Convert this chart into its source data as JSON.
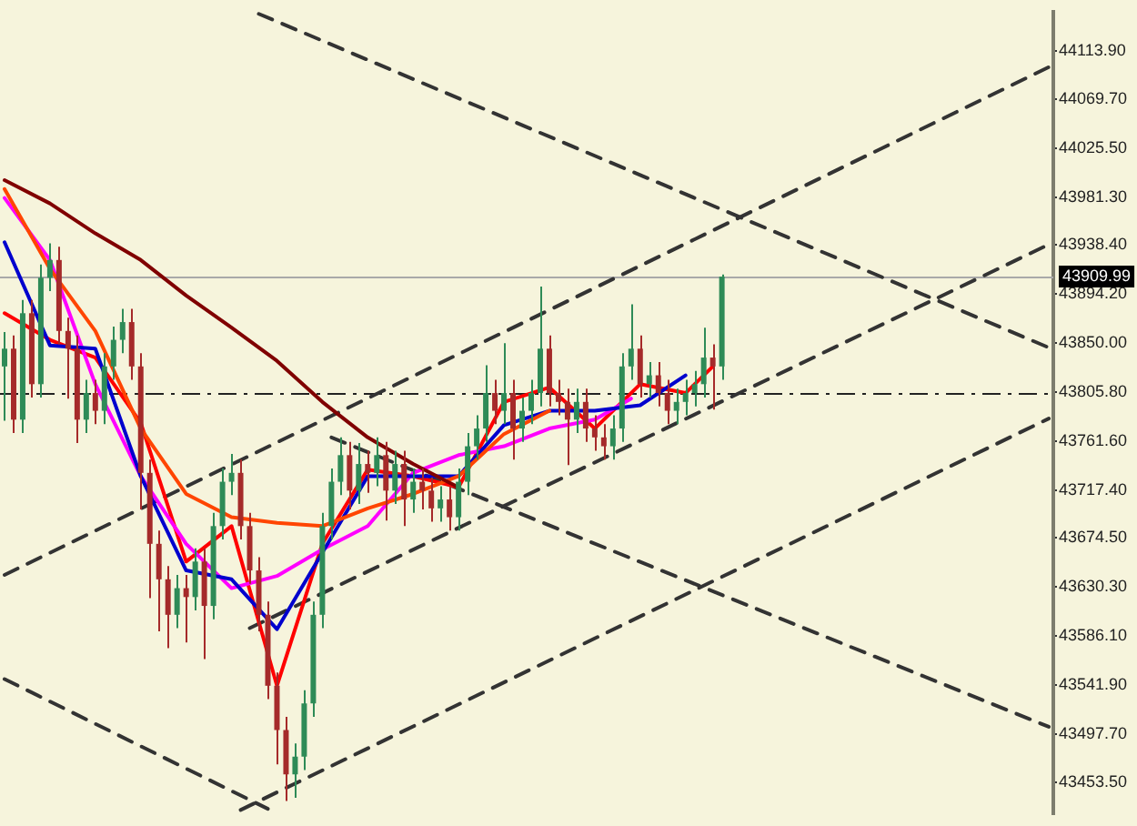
{
  "chart_data": {
    "type": "candlestick",
    "marker": "none",
    "grid": false,
    "legend": false,
    "tick_labels": "y",
    "categories": [
      null,
      null,
      null,
      null,
      null,
      null,
      null,
      null,
      null,
      null,
      null,
      null,
      null,
      null,
      null,
      null,
      null,
      null,
      null,
      null,
      null,
      null,
      null,
      null,
      null,
      null,
      null,
      null,
      null,
      null,
      null,
      null,
      null,
      null,
      null,
      null,
      null,
      null,
      null,
      null,
      null,
      null,
      null,
      null,
      null,
      null,
      null,
      null,
      null,
      null,
      null,
      null,
      null,
      null,
      null,
      null,
      null,
      null,
      null,
      null,
      null,
      null,
      null,
      null,
      null,
      null,
      null,
      null,
      null,
      null,
      null,
      null,
      null,
      null,
      null,
      null,
      null,
      null,
      null,
      null,
      null,
      null,
      null,
      null,
      null,
      null,
      null,
      null,
      null,
      null,
      null,
      null,
      null,
      null,
      null,
      null,
      null,
      null,
      null,
      null,
      null,
      null,
      null,
      null,
      null,
      null,
      null,
      null,
      null,
      null,
      null,
      null,
      null,
      null,
      null,
      null
    ],
    "ylim": [
      43425,
      44149
    ],
    "yticks": [
      {
        "value": 43453.5,
        "label": "43453.50"
      },
      {
        "value": 43497.7,
        "label": "43497.70"
      },
      {
        "value": 43541.9,
        "label": "43541.90"
      },
      {
        "value": 43586.1,
        "label": "43586.10"
      },
      {
        "value": 43630.3,
        "label": "43630.30"
      },
      {
        "value": 43674.5,
        "label": "43674.50"
      },
      {
        "value": 43717.4,
        "label": "43717.40"
      },
      {
        "value": 43761.6,
        "label": "43761.60"
      },
      {
        "value": 43805.8,
        "label": "43805.80"
      },
      {
        "value": 43850,
        "label": "43850.00"
      },
      {
        "value": 43894.2,
        "label": "43894.20"
      },
      {
        "value": 43938.4,
        "label": "43938.40"
      },
      {
        "value": 43981.3,
        "label": "43981.30"
      },
      {
        "value": 44025.5,
        "label": "44025.50"
      },
      {
        "value": 44069.7,
        "label": "44069.70"
      },
      {
        "value": 44113.9,
        "label": "44113.90"
      }
    ],
    "ohlc": [
      [
        43829,
        43860,
        43780,
        43845
      ],
      [
        43845,
        43857,
        43769,
        43781
      ],
      [
        43781,
        43889,
        43769,
        43877
      ],
      [
        43877,
        43889,
        43801,
        43813
      ],
      [
        43813,
        43921,
        43801,
        43909
      ],
      [
        43909,
        43940,
        43897,
        43925
      ],
      [
        43925,
        43937,
        43849,
        43861
      ],
      [
        43861,
        43873,
        43800,
        43845
      ],
      [
        43845,
        43857,
        43760,
        43781
      ],
      [
        43781,
        43817,
        43769,
        43805
      ],
      [
        43805,
        43817,
        43777,
        43789
      ],
      [
        43789,
        43841,
        43777,
        43829
      ],
      [
        43829,
        43865,
        43817,
        43853
      ],
      [
        43853,
        43881,
        43841,
        43869
      ],
      [
        43869,
        43881,
        43817,
        43829
      ],
      [
        43829,
        43841,
        43700,
        43733
      ],
      [
        43733,
        43745,
        43620,
        43669
      ],
      [
        43669,
        43681,
        43590,
        43637
      ],
      [
        43637,
        43649,
        43575,
        43605
      ],
      [
        43605,
        43641,
        43593,
        43629
      ],
      [
        43629,
        43641,
        43580,
        43621
      ],
      [
        43621,
        43665,
        43609,
        43653
      ],
      [
        43653,
        43665,
        43565,
        43613
      ],
      [
        43613,
        43697,
        43601,
        43685
      ],
      [
        43685,
        43737,
        43673,
        43725
      ],
      [
        43725,
        43750,
        43713,
        43733
      ],
      [
        43733,
        43745,
        43673,
        43685
      ],
      [
        43685,
        43697,
        43633,
        43645
      ],
      [
        43645,
        43657,
        43590,
        43605
      ],
      [
        43605,
        43617,
        43529,
        43541
      ],
      [
        43541,
        43553,
        43470,
        43501
      ],
      [
        43501,
        43513,
        43437,
        43461
      ],
      [
        43461,
        43489,
        43440,
        43477
      ],
      [
        43477,
        43537,
        43465,
        43525
      ],
      [
        43525,
        43617,
        43513,
        43605
      ],
      [
        43605,
        43697,
        43593,
        43685
      ],
      [
        43685,
        43737,
        43673,
        43725
      ],
      [
        43725,
        43765,
        43713,
        43749
      ],
      [
        43749,
        43761,
        43700,
        43717
      ],
      [
        43717,
        43760,
        43705,
        43741
      ],
      [
        43741,
        43753,
        43715,
        43733
      ],
      [
        43733,
        43765,
        43721,
        43749
      ],
      [
        43749,
        43761,
        43690,
        43717
      ],
      [
        43717,
        43753,
        43705,
        43741
      ],
      [
        43741,
        43753,
        43685,
        43709
      ],
      [
        43709,
        43737,
        43697,
        43725
      ],
      [
        43725,
        43737,
        43700,
        43717
      ],
      [
        43717,
        43729,
        43689,
        43701
      ],
      [
        43701,
        43721,
        43689,
        43709
      ],
      [
        43709,
        43721,
        43681,
        43693
      ],
      [
        43693,
        43737,
        43681,
        43725
      ],
      [
        43725,
        43769,
        43713,
        43757
      ],
      [
        43757,
        43785,
        43745,
        43773
      ],
      [
        43773,
        43830,
        43761,
        43805
      ],
      [
        43805,
        43817,
        43777,
        43789
      ],
      [
        43789,
        43850,
        43777,
        43805
      ],
      [
        43805,
        43817,
        43745,
        43773
      ],
      [
        43773,
        43801,
        43761,
        43789
      ],
      [
        43789,
        43817,
        43777,
        43805
      ],
      [
        43805,
        43901,
        43793,
        43845
      ],
      [
        43845,
        43857,
        43793,
        43805
      ],
      [
        43805,
        43817,
        43785,
        43797
      ],
      [
        43797,
        43809,
        43740,
        43781
      ],
      [
        43781,
        43809,
        43769,
        43797
      ],
      [
        43797,
        43809,
        43761,
        43773
      ],
      [
        43773,
        43785,
        43753,
        43765
      ],
      [
        43765,
        43777,
        43745,
        43757
      ],
      [
        43757,
        43785,
        43745,
        43773
      ],
      [
        43773,
        43841,
        43761,
        43829
      ],
      [
        43829,
        43885,
        43817,
        43845
      ],
      [
        43845,
        43857,
        43801,
        43813
      ],
      [
        43813,
        43833,
        43801,
        43821
      ],
      [
        43821,
        43833,
        43793,
        43805
      ],
      [
        43805,
        43817,
        43777,
        43789
      ],
      [
        43789,
        43809,
        43777,
        43797
      ],
      [
        43797,
        43817,
        43785,
        43805
      ],
      [
        43805,
        43825,
        43793,
        43813
      ],
      [
        43813,
        43864,
        43801,
        43837
      ],
      [
        43837,
        43849,
        43790,
        43829
      ],
      [
        43829,
        43912,
        43817,
        43909.99
      ],
      null,
      null,
      null,
      null,
      null,
      null,
      null,
      null,
      null,
      null,
      null,
      null,
      null,
      null,
      null,
      null,
      null,
      null,
      null,
      null,
      null,
      null,
      null,
      null,
      null,
      null,
      null,
      null,
      null,
      null,
      null,
      null,
      null,
      null,
      null,
      null
    ],
    "colors": [
      "#2e8b57",
      "#a52a2a",
      "#2e8b57",
      "#a52a2a",
      "#2e8b57",
      "#2e8b57",
      "#a52a2a",
      "#a52a2a",
      "#a52a2a",
      "#2e8b57",
      "#a52a2a",
      "#2e8b57",
      "#2e8b57",
      "#2e8b57",
      "#a52a2a",
      "#a52a2a",
      "#a52a2a",
      "#a52a2a",
      "#a52a2a",
      "#2e8b57",
      "#a52a2a",
      "#2e8b57",
      "#a52a2a",
      "#2e8b57",
      "#2e8b57",
      "#2e8b57",
      "#a52a2a",
      "#a52a2a",
      "#a52a2a",
      "#a52a2a",
      "#a52a2a",
      "#a52a2a",
      "#2e8b57",
      "#2e8b57",
      "#2e8b57",
      "#2e8b57",
      "#2e8b57",
      "#2e8b57",
      "#a52a2a",
      "#2e8b57",
      "#a52a2a",
      "#2e8b57",
      "#a52a2a",
      "#2e8b57",
      "#a52a2a",
      "#2e8b57",
      "#a52a2a",
      "#a52a2a",
      "#2e8b57",
      "#a52a2a",
      "#2e8b57",
      "#2e8b57",
      "#2e8b57",
      "#2e8b57",
      "#a52a2a",
      "#2e8b57",
      "#a52a2a",
      "#2e8b57",
      "#2e8b57",
      "#2e8b57",
      "#a52a2a",
      "#a52a2a",
      "#a52a2a",
      "#2e8b57",
      "#a52a2a",
      "#a52a2a",
      "#a52a2a",
      "#2e8b57",
      "#2e8b57",
      "#2e8b57",
      "#a52a2a",
      "#2e8b57",
      "#a52a2a",
      "#a52a2a",
      "#2e8b57",
      "#2e8b57",
      "#2e8b57",
      "#2e8b57",
      "#a52a2a",
      "#2e8b57",
      null,
      null,
      null,
      null,
      null,
      null,
      null,
      null,
      null,
      null,
      null,
      null,
      null,
      null,
      null,
      null,
      null,
      null,
      null,
      null,
      null,
      null,
      null,
      null,
      null,
      null,
      null,
      null,
      null,
      null,
      null,
      null,
      null,
      null,
      null,
      null
    ],
    "series": [
      {
        "type": "line",
        "color": "#800000",
        "values": [
          43997,
          null,
          null,
          null,
          null,
          43976,
          null,
          null,
          null,
          null,
          43949,
          null,
          null,
          null,
          null,
          43925,
          null,
          null,
          null,
          null,
          43893,
          null,
          null,
          null,
          null,
          43864,
          null,
          null,
          null,
          null,
          43834,
          null,
          null,
          null,
          null,
          43797,
          null,
          null,
          null,
          null,
          43765,
          null,
          null,
          null,
          null,
          43741,
          null,
          null,
          null,
          null,
          43720,
          null,
          null,
          null,
          null,
          null,
          null,
          null,
          null,
          null,
          null,
          null,
          null,
          null,
          null,
          null,
          null,
          null,
          null,
          null,
          null,
          null,
          null,
          null,
          null,
          null,
          null,
          null,
          null,
          null,
          null,
          null,
          null,
          null,
          null,
          null,
          null,
          null,
          null,
          null,
          null,
          null,
          null,
          null,
          null,
          null,
          null,
          null,
          null,
          null,
          null,
          null,
          null,
          null,
          null,
          null,
          null,
          null,
          null,
          null,
          null,
          null,
          null,
          null,
          null,
          null
        ]
      },
      {
        "type": "line",
        "color": "#ff4500",
        "values": [
          43989,
          null,
          null,
          null,
          null,
          43917,
          null,
          null,
          null,
          null,
          43861,
          null,
          null,
          null,
          null,
          43773,
          null,
          null,
          null,
          null,
          43714,
          null,
          null,
          null,
          null,
          43693,
          null,
          null,
          null,
          null,
          43688,
          null,
          null,
          null,
          null,
          43685,
          null,
          null,
          null,
          null,
          43701,
          null,
          null,
          null,
          null,
          43714,
          null,
          null,
          null,
          null,
          43730,
          null,
          null,
          null,
          null,
          43768,
          null,
          null,
          null,
          null,
          43789,
          null,
          null,
          null,
          null,
          null,
          null,
          null,
          null,
          null,
          null,
          null,
          null,
          null,
          null,
          null,
          null,
          null,
          null,
          null,
          null,
          null,
          null,
          null,
          null,
          null,
          null,
          null,
          null,
          null,
          null,
          null,
          null,
          null,
          null,
          null,
          null,
          null,
          null,
          null,
          null,
          null,
          null,
          null,
          null,
          null,
          null,
          null,
          null,
          null,
          null,
          null,
          null,
          null,
          null,
          null
        ]
      },
      {
        "type": "line",
        "color": "#0000cd",
        "values": [
          43941,
          null,
          null,
          null,
          null,
          43848,
          null,
          null,
          null,
          null,
          43845,
          null,
          null,
          null,
          null,
          43730,
          null,
          null,
          null,
          null,
          43645,
          null,
          null,
          null,
          null,
          43637,
          null,
          null,
          null,
          null,
          43592,
          null,
          null,
          null,
          null,
          43661,
          null,
          null,
          null,
          null,
          43730,
          null,
          null,
          null,
          null,
          43730,
          null,
          null,
          null,
          null,
          43730,
          null,
          null,
          null,
          null,
          43776,
          null,
          null,
          null,
          null,
          43789,
          null,
          null,
          null,
          null,
          43789,
          null,
          null,
          null,
          null,
          43794,
          null,
          null,
          null,
          null,
          43821,
          null,
          null,
          null,
          null,
          null,
          null,
          null,
          null,
          null,
          null,
          null,
          null,
          null,
          null,
          null,
          null,
          null,
          null,
          null,
          null,
          null,
          null,
          null,
          null,
          null,
          null,
          null,
          null,
          null,
          null,
          null,
          null,
          null,
          null,
          null,
          null,
          null,
          null,
          null,
          null
        ]
      },
      {
        "type": "line",
        "color": "#ff00ff",
        "values": [
          43981,
          null,
          null,
          null,
          null,
          43925,
          null,
          null,
          null,
          null,
          43813,
          null,
          null,
          null,
          null,
          43730,
          null,
          null,
          null,
          null,
          43669,
          null,
          null,
          null,
          null,
          43629,
          null,
          null,
          null,
          null,
          43640,
          null,
          null,
          null,
          null,
          43664,
          null,
          null,
          null,
          null,
          43685,
          null,
          null,
          null,
          null,
          43733,
          null,
          null,
          null,
          null,
          43749,
          null,
          null,
          null,
          null,
          43757,
          null,
          null,
          null,
          null,
          43773,
          null,
          null,
          null,
          null,
          43781,
          null,
          null,
          null,
          43800,
          null,
          null,
          null,
          null,
          null,
          null,
          null,
          null,
          null,
          null,
          null,
          null,
          null,
          null,
          null,
          null,
          null,
          null,
          null,
          null,
          null,
          null,
          null,
          null,
          null,
          null,
          null,
          null,
          null,
          null,
          null,
          null,
          null,
          null,
          null,
          null,
          null,
          null,
          null,
          null,
          null,
          null,
          null,
          null,
          null,
          null
        ]
      },
      {
        "type": "line",
        "color": "#ff0000",
        "values": [
          43877,
          null,
          null,
          null,
          null,
          43853,
          null,
          null,
          null,
          null,
          43837,
          null,
          null,
          null,
          null,
          43778,
          null,
          null,
          null,
          null,
          43653,
          null,
          null,
          null,
          null,
          43685,
          null,
          null,
          null,
          null,
          43541,
          null,
          null,
          null,
          null,
          43669,
          null,
          null,
          null,
          null,
          43736,
          null,
          null,
          null,
          null,
          43730,
          null,
          null,
          null,
          null,
          43720,
          null,
          null,
          null,
          null,
          43797,
          null,
          null,
          null,
          null,
          43810,
          null,
          null,
          null,
          null,
          43773,
          null,
          null,
          null,
          null,
          43813,
          null,
          null,
          null,
          null,
          43805,
          null,
          null,
          43829,
          null,
          null,
          null,
          null,
          null,
          null,
          null,
          null,
          null,
          null,
          null,
          null,
          null,
          null,
          null,
          null,
          null,
          null,
          null,
          null,
          null,
          null,
          null,
          null,
          null,
          null,
          null,
          null,
          null,
          null,
          null,
          null,
          null,
          null,
          null,
          null,
          null
        ]
      },
      {
        "type": "line",
        "color": "#333333",
        "line_style": "dashed",
        "values": [
          null,
          null,
          null,
          null,
          null,
          null,
          null,
          null,
          null,
          null,
          null,
          null,
          null,
          null,
          null,
          null,
          null,
          null,
          null,
          null,
          null,
          null,
          null,
          null,
          null,
          null,
          null,
          null,
          44147,
          null,
          null,
          null,
          null,
          null,
          null,
          null,
          null,
          null,
          null,
          null,
          null,
          null,
          null,
          null,
          null,
          null,
          null,
          null,
          null,
          null,
          null,
          null,
          null,
          null,
          null,
          null,
          null,
          null,
          null,
          null,
          null,
          null,
          null,
          null,
          null,
          null,
          null,
          null,
          null,
          null,
          null,
          null,
          null,
          null,
          null,
          null,
          null,
          null,
          null,
          null,
          null,
          null,
          null,
          null,
          null,
          null,
          null,
          null,
          null,
          null,
          null,
          null,
          null,
          null,
          null,
          null,
          null,
          null,
          null,
          null,
          null,
          null,
          null,
          null,
          null,
          null,
          null,
          null,
          null,
          null,
          null,
          null,
          null,
          null,
          null,
          43846
        ]
      },
      {
        "type": "line",
        "color": "#333333",
        "line_style": "dashed",
        "values": [
          43641,
          null,
          null,
          null,
          null,
          null,
          null,
          null,
          null,
          null,
          null,
          null,
          null,
          null,
          null,
          null,
          null,
          null,
          null,
          null,
          null,
          null,
          null,
          null,
          null,
          null,
          null,
          null,
          null,
          null,
          null,
          null,
          null,
          null,
          null,
          null,
          null,
          null,
          null,
          null,
          null,
          null,
          null,
          null,
          null,
          null,
          null,
          null,
          null,
          null,
          null,
          null,
          null,
          null,
          null,
          null,
          null,
          null,
          null,
          null,
          null,
          null,
          null,
          null,
          null,
          null,
          null,
          null,
          null,
          null,
          null,
          null,
          null,
          null,
          null,
          null,
          null,
          null,
          null,
          null,
          null,
          null,
          null,
          null,
          null,
          null,
          null,
          null,
          null,
          null,
          null,
          null,
          null,
          null,
          null,
          null,
          null,
          null,
          null,
          null,
          null,
          null,
          null,
          null,
          null,
          null,
          null,
          null,
          null,
          null,
          null,
          null,
          null,
          null,
          null,
          44099
        ]
      },
      {
        "type": "line",
        "color": "#333333",
        "line_style": "dashed",
        "values": [
          null,
          null,
          null,
          null,
          null,
          null,
          null,
          null,
          null,
          null,
          null,
          null,
          null,
          null,
          null,
          null,
          null,
          null,
          null,
          null,
          null,
          null,
          null,
          null,
          null,
          null,
          null,
          43593,
          null,
          null,
          null,
          null,
          null,
          null,
          null,
          null,
          null,
          null,
          null,
          null,
          null,
          null,
          null,
          null,
          null,
          null,
          null,
          null,
          null,
          null,
          null,
          null,
          null,
          null,
          null,
          null,
          null,
          null,
          null,
          null,
          null,
          null,
          null,
          null,
          null,
          null,
          null,
          null,
          null,
          null,
          null,
          null,
          null,
          null,
          null,
          null,
          null,
          null,
          null,
          null,
          null,
          null,
          null,
          null,
          null,
          null,
          null,
          null,
          null,
          null,
          null,
          null,
          null,
          null,
          null,
          null,
          null,
          null,
          null,
          null,
          null,
          null,
          null,
          null,
          null,
          null,
          null,
          null,
          null,
          null,
          null,
          null,
          null,
          null,
          null,
          43939
        ]
      },
      {
        "type": "line",
        "color": "#333333",
        "line_style": "dashed",
        "values": [
          null,
          null,
          null,
          null,
          null,
          null,
          null,
          null,
          null,
          null,
          null,
          null,
          null,
          null,
          null,
          null,
          null,
          null,
          null,
          null,
          null,
          null,
          null,
          null,
          null,
          null,
          43429,
          null,
          null,
          null,
          null,
          null,
          null,
          null,
          null,
          null,
          null,
          null,
          null,
          null,
          null,
          null,
          null,
          null,
          null,
          null,
          null,
          null,
          null,
          null,
          null,
          null,
          null,
          null,
          null,
          null,
          null,
          null,
          null,
          null,
          null,
          null,
          null,
          null,
          null,
          null,
          null,
          null,
          null,
          null,
          null,
          null,
          null,
          null,
          null,
          null,
          null,
          null,
          null,
          null,
          null,
          null,
          null,
          null,
          null,
          null,
          null,
          null,
          null,
          null,
          null,
          null,
          null,
          null,
          null,
          null,
          null,
          null,
          null,
          null,
          null,
          null,
          null,
          null,
          null,
          null,
          null,
          null,
          null,
          null,
          null,
          null,
          null,
          null,
          null,
          43782
        ]
      },
      {
        "type": "line",
        "color": "#333333",
        "line_style": "dashed",
        "values": [
          null,
          null,
          null,
          null,
          null,
          null,
          null,
          null,
          null,
          null,
          null,
          null,
          null,
          null,
          null,
          null,
          null,
          null,
          null,
          null,
          null,
          null,
          null,
          null,
          null,
          null,
          null,
          null,
          null,
          null,
          null,
          null,
          null,
          null,
          null,
          null,
          43765,
          null,
          null,
          null,
          null,
          null,
          null,
          null,
          null,
          null,
          null,
          null,
          null,
          null,
          null,
          null,
          null,
          null,
          null,
          null,
          null,
          null,
          null,
          null,
          null,
          null,
          null,
          null,
          null,
          null,
          null,
          null,
          null,
          null,
          null,
          null,
          null,
          null,
          null,
          null,
          null,
          null,
          null,
          null,
          null,
          null,
          null,
          null,
          null,
          null,
          null,
          null,
          null,
          null,
          null,
          null,
          null,
          null,
          null,
          null,
          null,
          null,
          null,
          null,
          null,
          null,
          null,
          null,
          null,
          null,
          null,
          null,
          null,
          null,
          null,
          null,
          null,
          null,
          null,
          43504
        ]
      },
      {
        "type": "line",
        "color": "#333333",
        "line_style": "dashed",
        "values": [
          43547,
          null,
          null,
          null,
          null,
          null,
          null,
          null,
          null,
          null,
          null,
          null,
          null,
          null,
          null,
          null,
          null,
          null,
          null,
          null,
          null,
          null,
          null,
          null,
          null,
          null,
          null,
          null,
          null,
          43430,
          null,
          null,
          null,
          null,
          null,
          null,
          null,
          null,
          null,
          null,
          null,
          null,
          null,
          null,
          null,
          null,
          null,
          null,
          null,
          null,
          null,
          null,
          null,
          null,
          null,
          null,
          null,
          null,
          null,
          null,
          null,
          null,
          null,
          null,
          null,
          null,
          null,
          null,
          null,
          null,
          null,
          null,
          null,
          null,
          null,
          null,
          null,
          null,
          null,
          null,
          null,
          null,
          null,
          null,
          null,
          null,
          null,
          null,
          null,
          null,
          null,
          null,
          null,
          null,
          null,
          null,
          null,
          null,
          null,
          null,
          null,
          null,
          null,
          null,
          null,
          null,
          null,
          null,
          null,
          null,
          null,
          null,
          null,
          null,
          null,
          null
        ]
      }
    ],
    "ref_lines": [
      {
        "axis": "y",
        "value": 43805.8,
        "color": "#222222",
        "line_style": "dashed"
      },
      {
        "axis": "y",
        "value": 43909.99,
        "label": "43909.99",
        "color": "#a9a9a9"
      }
    ]
  }
}
